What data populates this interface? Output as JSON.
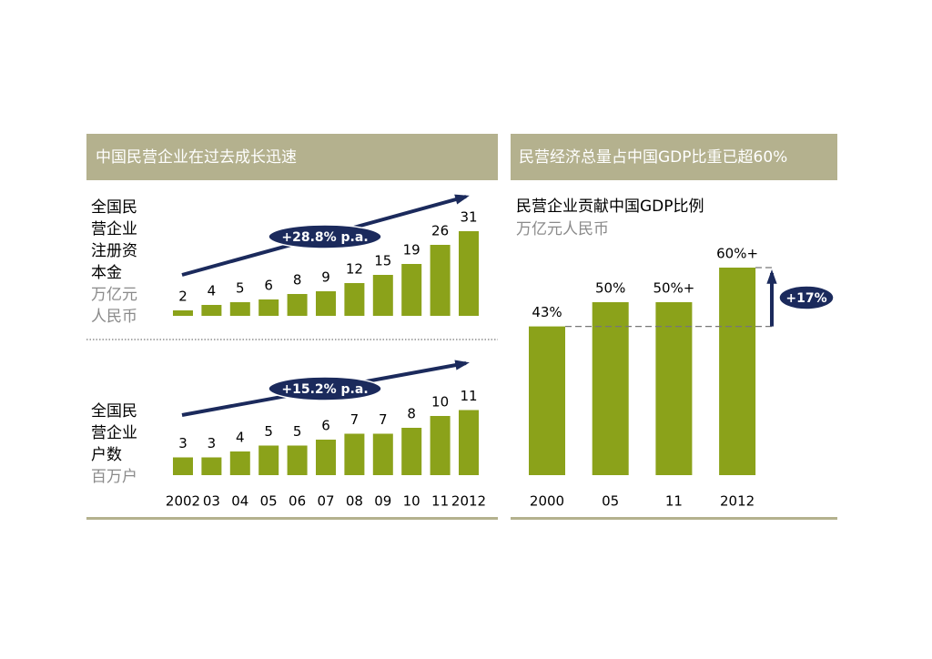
{
  "headers": [
    "中国民营企业在过去成长迅速",
    "民营经济总量占中国GDP比重已超60%"
  ],
  "chart_data": [
    {
      "type": "bar",
      "label": "全国民营企业注册资本金",
      "unit": "万亿元人民币",
      "color": "#8ba21a",
      "values": [
        2,
        4,
        5,
        6,
        8,
        9,
        12,
        15,
        19,
        26,
        31
      ],
      "annotation": "+28.8% p.a."
    },
    {
      "type": "bar",
      "label": "全国民营企业户数",
      "unit": "百万户",
      "color": "#8ba21a",
      "categories": [
        "2002",
        "03",
        "04",
        "05",
        "06",
        "07",
        "08",
        "09",
        "10",
        "11",
        "2012"
      ],
      "values": [
        3,
        3,
        4,
        5,
        5,
        6,
        7,
        7,
        8,
        10,
        11
      ],
      "annotation": "+15.2% p.a."
    },
    {
      "type": "bar",
      "title": "民营企业贡献中国GDP比例",
      "subtitle": "万亿元人民币",
      "color": "#8ba21a",
      "categories": [
        "2000",
        "05",
        "11",
        "2012"
      ],
      "values": [
        43,
        50,
        50,
        60
      ],
      "value_labels": [
        "43%",
        "50%",
        "50%+",
        "60%+"
      ],
      "annotation": "+17%"
    }
  ]
}
